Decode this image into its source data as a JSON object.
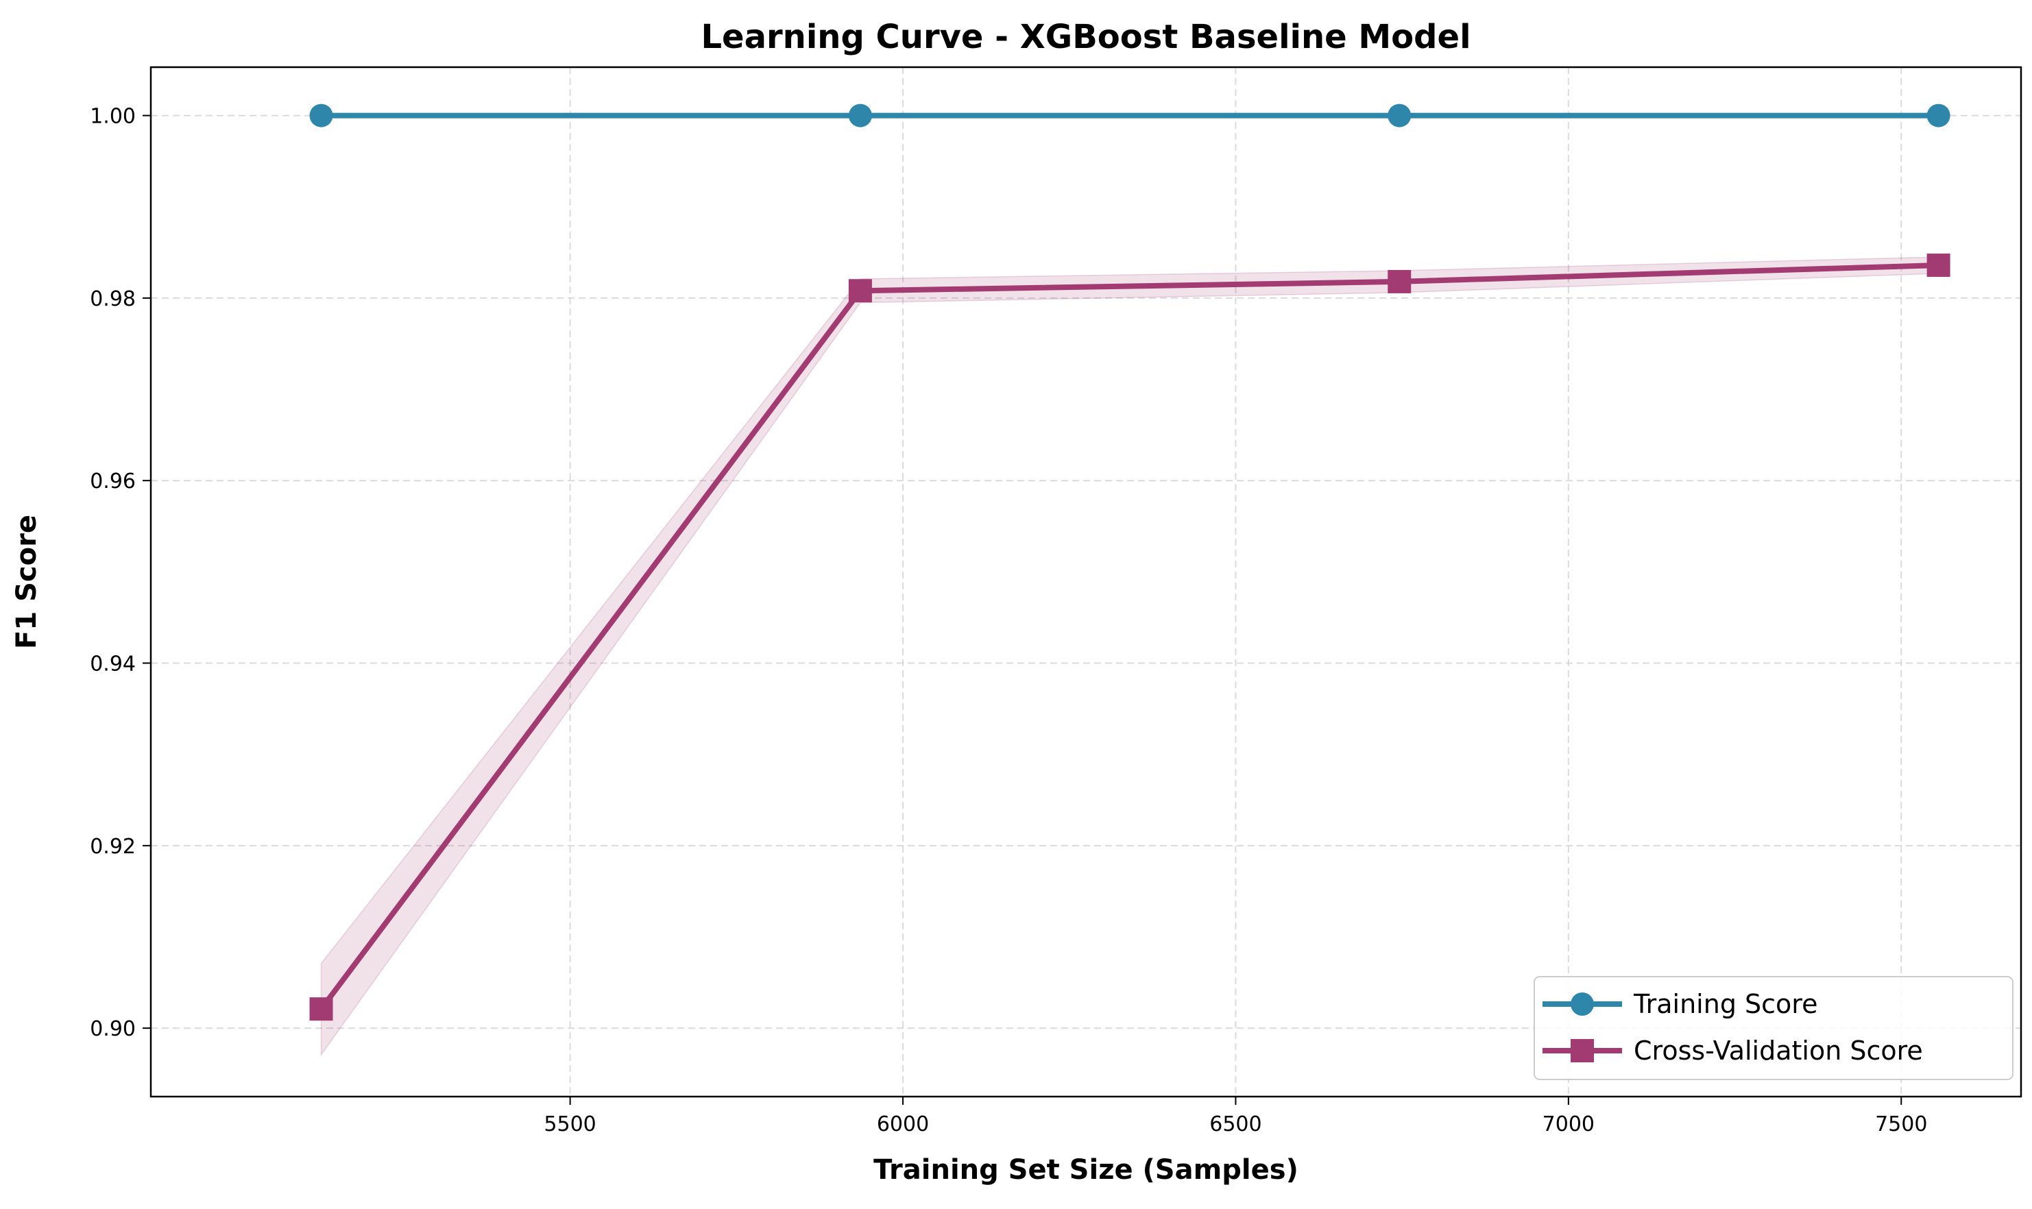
{
  "chart_data": {
    "type": "line",
    "title": "Learning Curve - XGBoost Baseline Model",
    "xlabel": "Training Set Size (Samples)",
    "ylabel": "F1 Score",
    "x": [
      5126,
      5936,
      6746,
      7556
    ],
    "xlim": [
      4870,
      7680
    ],
    "ylim": [
      0.8925,
      1.0053
    ],
    "xticks": [
      5500,
      6000,
      6500,
      7000,
      7500
    ],
    "xtick_labels": [
      "5500",
      "6000",
      "6500",
      "7000",
      "7500"
    ],
    "yticks": [
      0.9,
      0.92,
      0.94,
      0.96,
      0.98,
      1.0
    ],
    "ytick_labels": [
      "0.90",
      "0.92",
      "0.94",
      "0.96",
      "0.98",
      "1.00"
    ],
    "grid": true,
    "legend_position": "bottom-right",
    "series": [
      {
        "name": "Training Score",
        "values": [
          1.0,
          1.0,
          1.0,
          1.0
        ],
        "std": [
          0.0,
          0.0,
          0.0,
          0.0
        ],
        "color": "#2e86ab",
        "marker": "circle"
      },
      {
        "name": "Cross-Validation Score",
        "values": [
          0.9021,
          0.9808,
          0.9818,
          0.9836
        ],
        "std": [
          0.005,
          0.0013,
          0.0012,
          0.0009
        ],
        "color": "#a23b72",
        "marker": "square"
      }
    ]
  }
}
